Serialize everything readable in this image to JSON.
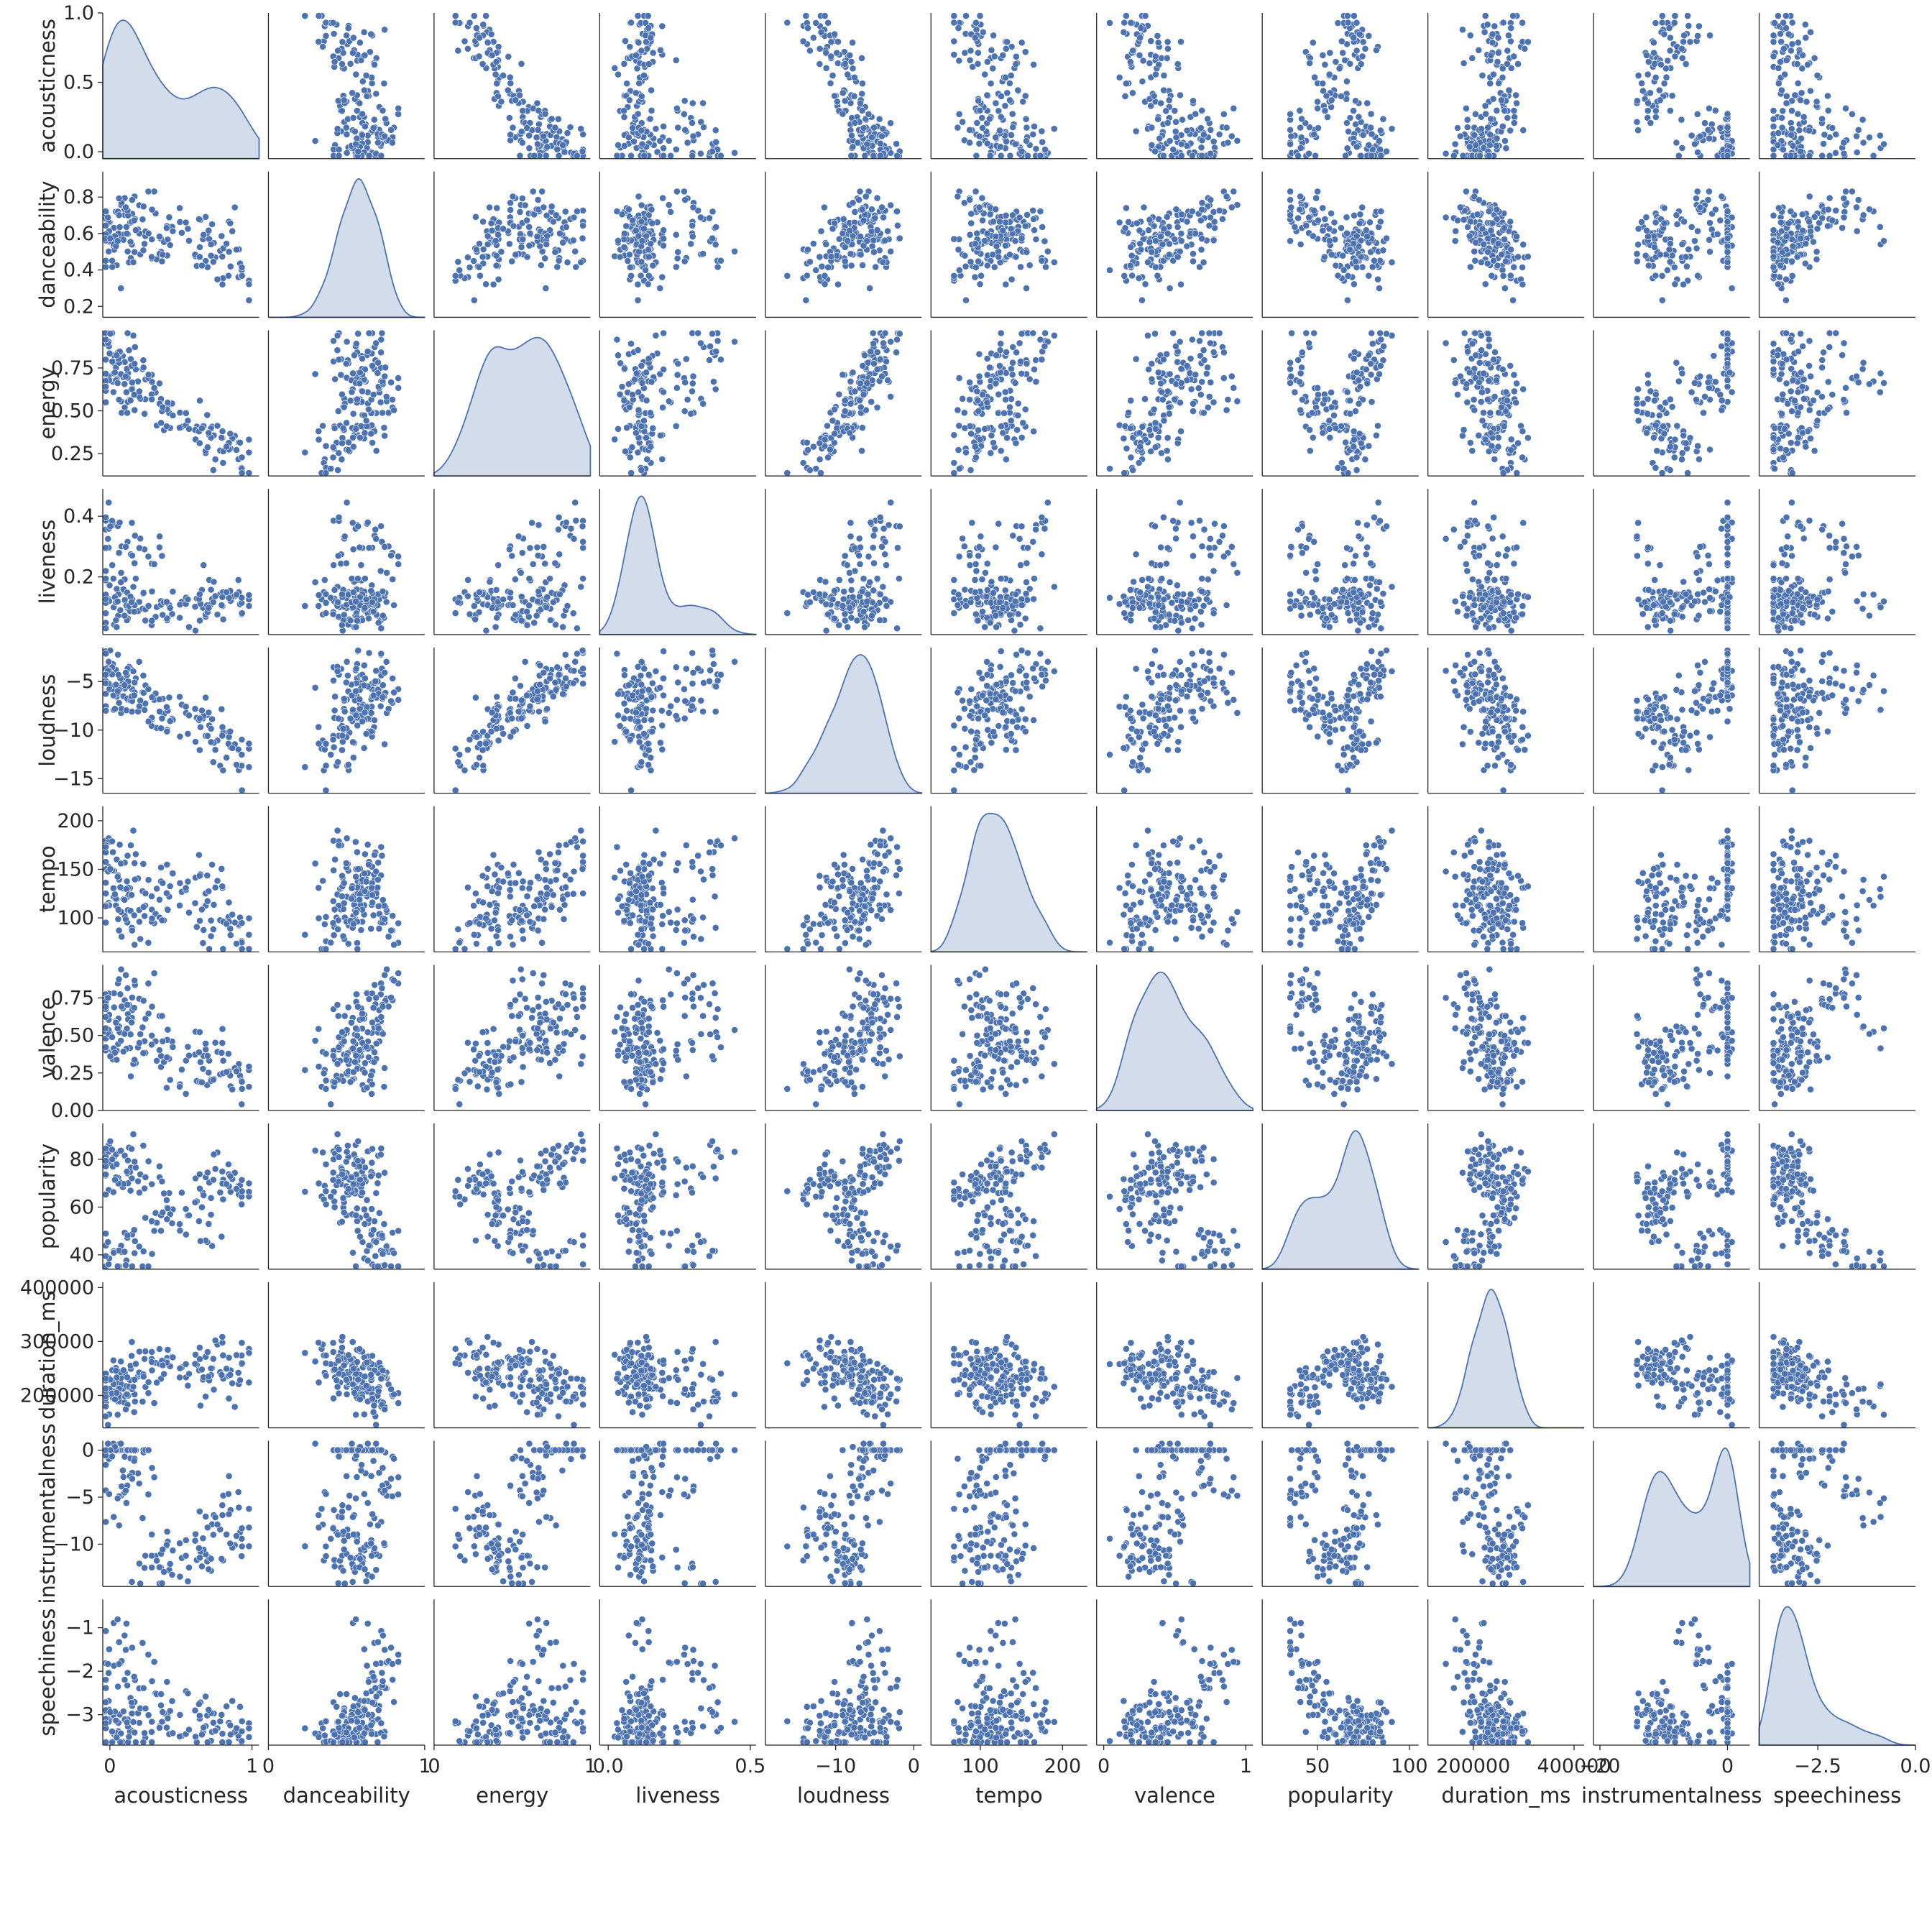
{
  "chart_data": {
    "type": "pairplot",
    "variables": [
      "acousticness",
      "danceability",
      "energy",
      "liveness",
      "loudness",
      "tempo",
      "valence",
      "popularity",
      "duration_ms",
      "instrumentalness",
      "speechiness"
    ],
    "x_ranges": [
      [
        -0.05,
        1.05
      ],
      [
        0,
        1
      ],
      [
        0,
        1
      ],
      [
        -0.03,
        0.52
      ],
      [
        -19,
        1
      ],
      [
        40,
        230
      ],
      [
        -0.05,
        1.05
      ],
      [
        20,
        105
      ],
      [
        110000,
        420000
      ],
      [
        -21,
        3.5
      ],
      [
        -4.0,
        0
      ]
    ],
    "y_ranges": [
      [
        -0.05,
        1.0
      ],
      [
        0.14,
        0.94
      ],
      [
        0.12,
        0.97
      ],
      [
        0.01,
        0.49
      ],
      [
        -16.5,
        -1.5
      ],
      [
        65,
        215
      ],
      [
        0.0,
        0.97
      ],
      [
        34,
        95
      ],
      [
        140000,
        410000
      ],
      [
        -14.5,
        1
      ],
      [
        -3.7,
        -0.35
      ]
    ],
    "x_ticks": [
      {
        "values": [
          0,
          1
        ],
        "labels": [
          "0",
          "1"
        ]
      },
      {
        "values": [
          0,
          1
        ],
        "labels": [
          "0",
          "1"
        ]
      },
      {
        "values": [
          0,
          1
        ],
        "labels": [
          "0",
          "1"
        ]
      },
      {
        "values": [
          0,
          0.5
        ],
        "labels": [
          "0.0",
          "0.5"
        ]
      },
      {
        "values": [
          -10,
          0
        ],
        "labels": [
          "−10",
          "0"
        ]
      },
      {
        "values": [
          100,
          200
        ],
        "labels": [
          "100",
          "200"
        ]
      },
      {
        "values": [
          0,
          1
        ],
        "labels": [
          "0",
          "1"
        ]
      },
      {
        "values": [
          50,
          100
        ],
        "labels": [
          "50",
          "100"
        ]
      },
      {
        "values": [
          200000,
          400000
        ],
        "labels": [
          "200000",
          "400000"
        ]
      },
      {
        "values": [
          -20,
          0
        ],
        "labels": [
          "−20",
          "0"
        ]
      },
      {
        "values": [
          -2.5,
          0
        ],
        "labels": [
          "−2.5",
          "0.0"
        ]
      }
    ],
    "y_ticks": [
      {
        "values": [
          0,
          0.5,
          1
        ],
        "labels": [
          "0.0",
          "0.5",
          "1.0"
        ]
      },
      {
        "values": [
          0.2,
          0.4,
          0.6,
          0.8
        ],
        "labels": [
          "0.2",
          "0.4",
          "0.6",
          "0.8"
        ]
      },
      {
        "values": [
          0.25,
          0.5,
          0.75
        ],
        "labels": [
          "0.25",
          "0.50",
          "0.75"
        ]
      },
      {
        "values": [
          0.2,
          0.4
        ],
        "labels": [
          "0.2",
          "0.4"
        ]
      },
      {
        "values": [
          -15,
          -10,
          -5
        ],
        "labels": [
          "−15",
          "−10",
          "−5"
        ]
      },
      {
        "values": [
          100,
          150,
          200
        ],
        "labels": [
          "100",
          "150",
          "200"
        ]
      },
      {
        "values": [
          0,
          0.25,
          0.5,
          0.75
        ],
        "labels": [
          "0.00",
          "0.25",
          "0.50",
          "0.75"
        ]
      },
      {
        "values": [
          40,
          60,
          80
        ],
        "labels": [
          "40",
          "60",
          "80"
        ]
      },
      {
        "values": [
          200000,
          300000,
          400000
        ],
        "labels": [
          "200000",
          "300000",
          "400000"
        ]
      },
      {
        "values": [
          -10,
          -5,
          0
        ],
        "labels": [
          "−10",
          "−5",
          "0"
        ]
      },
      {
        "values": [
          -3,
          -2,
          -1
        ],
        "labels": [
          "−3",
          "−2",
          "−1"
        ]
      }
    ],
    "diagonal": "kde",
    "offdiagonal": "scatter",
    "color": "#4c72b0",
    "grid": false,
    "legend": "none",
    "samples": [
      [
        0.05,
        0.62,
        0.78,
        0.1,
        -5.5,
        118,
        0.55,
        72,
        215000,
        0,
        -3.3
      ],
      [
        0.12,
        0.58,
        0.65,
        0.12,
        -6.8,
        128,
        0.4,
        68,
        230000,
        -1.5,
        -3.0
      ],
      [
        0.85,
        0.45,
        0.28,
        0.11,
        -11.2,
        95,
        0.3,
        70,
        245000,
        -6.0,
        -3.4
      ],
      [
        0.02,
        0.7,
        0.88,
        0.33,
        -4.0,
        150,
        0.75,
        42,
        205000,
        0,
        -2.2
      ],
      [
        0.35,
        0.55,
        0.55,
        0.09,
        -7.5,
        110,
        0.42,
        58,
        260000,
        -10.5,
        -3.2
      ],
      [
        0.6,
        0.48,
        0.4,
        0.13,
        -9.5,
        85,
        0.25,
        64,
        240000,
        -12.0,
        -3.5
      ],
      [
        0.08,
        0.66,
        0.72,
        0.1,
        -6.0,
        122,
        0.6,
        76,
        220000,
        0,
        -3.1
      ],
      [
        0.92,
        0.35,
        0.18,
        0.12,
        -14.0,
        72,
        0.15,
        66,
        280000,
        -9.0,
        -3.3
      ],
      [
        0.15,
        0.8,
        0.62,
        0.25,
        -7.0,
        100,
        0.85,
        40,
        190000,
        -4.5,
        -1.5
      ],
      [
        0.45,
        0.6,
        0.48,
        0.11,
        -8.5,
        140,
        0.35,
        55,
        235000,
        -13.0,
        -2.8
      ],
      [
        0.03,
        0.52,
        0.9,
        0.38,
        -3.0,
        175,
        0.5,
        80,
        210000,
        0,
        -3.0
      ],
      [
        0.7,
        0.4,
        0.35,
        0.1,
        -10.5,
        130,
        0.45,
        74,
        300000,
        -7.0,
        -3.4
      ],
      [
        0.22,
        0.73,
        0.58,
        0.14,
        -6.5,
        96,
        0.68,
        45,
        225000,
        -2.0,
        -2.5
      ],
      [
        0.5,
        0.62,
        0.45,
        0.09,
        -8.0,
        115,
        0.3,
        62,
        250000,
        -11.5,
        -3.3
      ],
      [
        0.06,
        0.45,
        0.8,
        0.2,
        -5.0,
        160,
        0.38,
        84,
        240000,
        0,
        -3.5
      ],
      [
        0.8,
        0.55,
        0.3,
        0.12,
        -12.0,
        105,
        0.2,
        72,
        220000,
        -8.5,
        -3.0
      ],
      [
        0.1,
        0.67,
        0.7,
        0.11,
        -5.8,
        125,
        0.55,
        38,
        200000,
        -5.5,
        -1.2
      ],
      [
        0.3,
        0.5,
        0.6,
        0.3,
        -7.2,
        90,
        0.48,
        69,
        265000,
        -12.5,
        -3.2
      ],
      [
        0.04,
        0.58,
        0.85,
        0.1,
        -4.5,
        135,
        0.65,
        78,
        215000,
        0,
        -3.4
      ],
      [
        0.65,
        0.63,
        0.42,
        0.12,
        -9.0,
        145,
        0.33,
        50,
        230000,
        -10.0,
        -2.9
      ]
    ]
  }
}
